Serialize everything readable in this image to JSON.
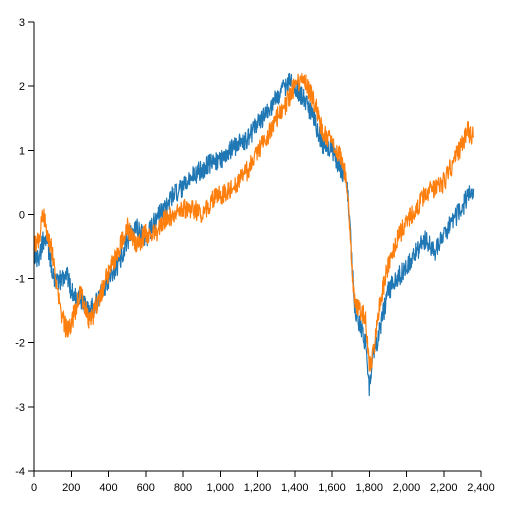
{
  "chart_data": {
    "type": "line",
    "title": "",
    "xlabel": "",
    "ylabel": "",
    "xlim": [
      0,
      2400
    ],
    "ylim": [
      -4,
      3
    ],
    "x_ticks": [
      0,
      200,
      400,
      600,
      800,
      1000,
      1200,
      1400,
      1600,
      1800,
      2000,
      2200,
      2400
    ],
    "x_tick_labels": [
      "0",
      "200",
      "400",
      "600",
      "800",
      "1,000",
      "1,200",
      "1,400",
      "1,600",
      "1,800",
      "2,000",
      "2,200",
      "2,400"
    ],
    "y_ticks": [
      -4,
      -3,
      -2,
      -1,
      0,
      1,
      2,
      3
    ],
    "y_tick_labels": [
      "-4",
      "-3",
      "-2",
      "-1",
      "0",
      "1",
      "2",
      "3"
    ],
    "grid": false,
    "legend": "none",
    "series": [
      {
        "color": "#1f77b4",
        "x": [
          0,
          25,
          50,
          75,
          100,
          125,
          150,
          175,
          200,
          250,
          300,
          350,
          400,
          450,
          500,
          550,
          600,
          650,
          700,
          750,
          800,
          850,
          900,
          950,
          1000,
          1050,
          1100,
          1150,
          1200,
          1250,
          1300,
          1350,
          1380,
          1400,
          1450,
          1500,
          1550,
          1600,
          1650,
          1680,
          1700,
          1720,
          1750,
          1780,
          1800,
          1820,
          1850,
          1900,
          1950,
          2000,
          2050,
          2100,
          2150,
          2200,
          2250,
          2300,
          2330,
          2360
        ],
        "y": [
          -0.6,
          -0.7,
          -0.4,
          -0.5,
          -0.9,
          -1.1,
          -1.0,
          -0.9,
          -1.2,
          -1.3,
          -1.5,
          -1.3,
          -1.0,
          -0.8,
          -0.4,
          -0.2,
          -0.4,
          -0.1,
          0.1,
          0.3,
          0.4,
          0.6,
          0.7,
          0.8,
          0.85,
          1.0,
          1.1,
          1.2,
          1.4,
          1.6,
          1.8,
          2.0,
          2.1,
          2.0,
          1.8,
          1.5,
          1.1,
          1.0,
          0.7,
          0.5,
          -0.3,
          -1.5,
          -1.7,
          -2.0,
          -2.7,
          -2.2,
          -1.9,
          -1.2,
          -1.0,
          -0.8,
          -0.6,
          -0.4,
          -0.6,
          -0.3,
          -0.1,
          0.1,
          0.3,
          0.4
        ]
      },
      {
        "color": "#ff7f0e",
        "x": [
          0,
          25,
          50,
          75,
          100,
          125,
          150,
          175,
          200,
          250,
          300,
          350,
          400,
          450,
          500,
          550,
          600,
          650,
          700,
          750,
          800,
          850,
          900,
          950,
          1000,
          1050,
          1100,
          1150,
          1200,
          1250,
          1300,
          1350,
          1380,
          1400,
          1450,
          1500,
          1550,
          1600,
          1650,
          1680,
          1700,
          1720,
          1750,
          1780,
          1800,
          1820,
          1850,
          1900,
          1950,
          2000,
          2050,
          2100,
          2150,
          2200,
          2250,
          2300,
          2330,
          2360
        ],
        "y": [
          -0.5,
          -0.4,
          0.0,
          -0.3,
          -0.6,
          -1.2,
          -1.6,
          -1.8,
          -1.7,
          -1.2,
          -1.7,
          -1.3,
          -0.9,
          -0.6,
          -0.2,
          -0.5,
          -0.3,
          -0.3,
          -0.1,
          0.0,
          0.1,
          0.1,
          0.0,
          0.2,
          0.3,
          0.4,
          0.5,
          0.7,
          1.0,
          1.2,
          1.5,
          1.7,
          1.9,
          2.0,
          2.1,
          1.8,
          1.3,
          1.1,
          0.9,
          0.5,
          -0.5,
          -1.3,
          -1.5,
          -1.6,
          -2.4,
          -2.2,
          -1.5,
          -0.8,
          -0.4,
          -0.1,
          0.1,
          0.3,
          0.4,
          0.5,
          0.8,
          1.1,
          1.3,
          1.2
        ]
      }
    ]
  }
}
